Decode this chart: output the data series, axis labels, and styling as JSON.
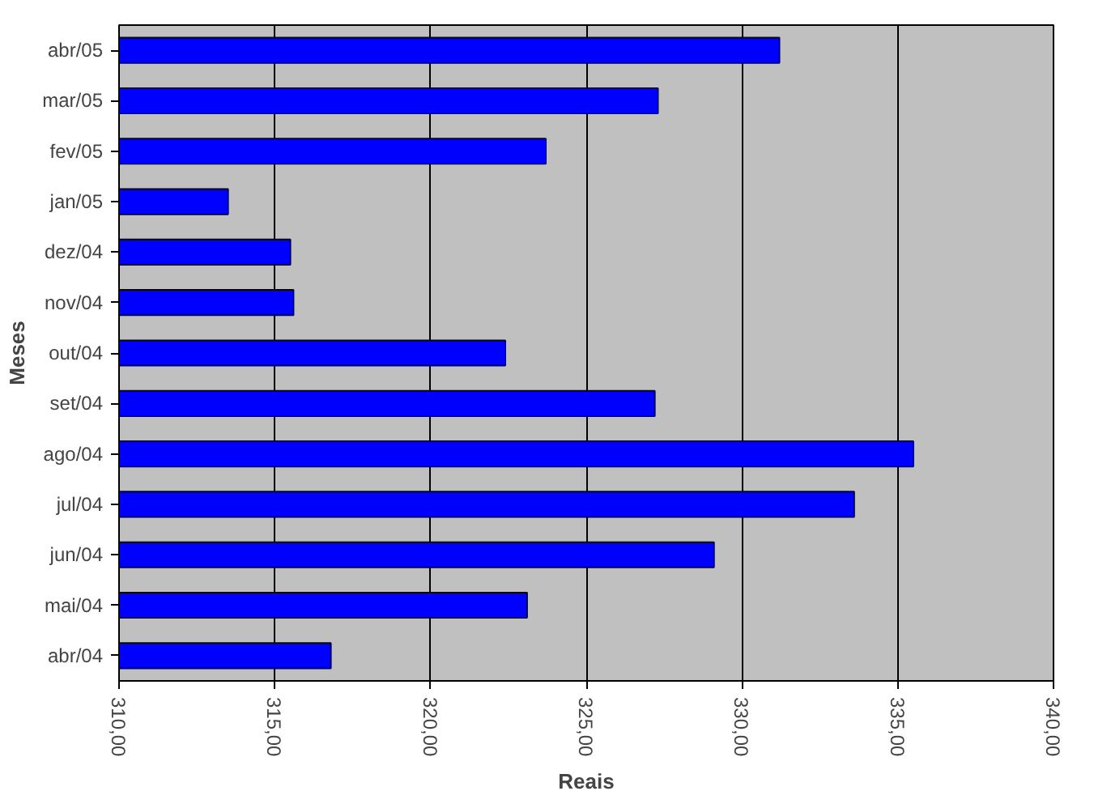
{
  "chart_data": {
    "type": "bar",
    "orientation": "horizontal",
    "xlabel": "Reais",
    "ylabel": "Meses",
    "categories": [
      "abr/05",
      "mar/05",
      "fev/05",
      "jan/05",
      "dez/04",
      "nov/04",
      "out/04",
      "set/04",
      "ago/04",
      "jul/04",
      "jun/04",
      "mai/04",
      "abr/04"
    ],
    "values": [
      331.2,
      327.3,
      323.7,
      313.5,
      315.5,
      315.6,
      322.4,
      327.2,
      335.5,
      333.6,
      329.1,
      323.1,
      316.8
    ],
    "color": "#0000ff",
    "xlim": [
      310,
      340
    ],
    "xticks": [
      {
        "value": 310,
        "label": "310,00"
      },
      {
        "value": 315,
        "label": "315,00"
      },
      {
        "value": 320,
        "label": "320,00"
      },
      {
        "value": 325,
        "label": "325,00"
      },
      {
        "value": 330,
        "label": "330,00"
      },
      {
        "value": 335,
        "label": "335,00"
      },
      {
        "value": 340,
        "label": "340,00"
      }
    ],
    "grid": "x"
  }
}
